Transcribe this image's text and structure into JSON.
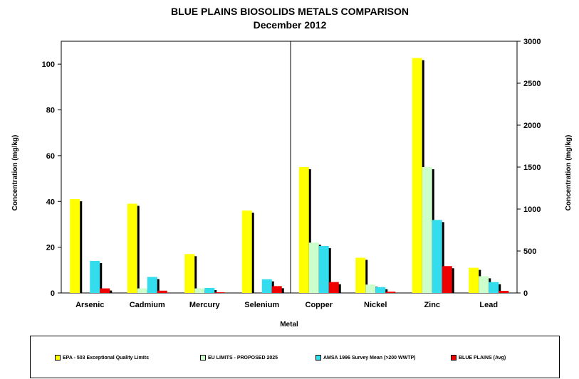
{
  "chart_data": {
    "type": "bar",
    "title": "BLUE PLAINS BIOSOLIDS METALS COMPARISON",
    "subtitle": "December 2012",
    "xlabel": "Metal",
    "ylabel_left": "Concentration (mg/kg)",
    "ylabel_right": "Concentration (mg/kg)",
    "left_axis": {
      "ylim": [
        0,
        110
      ],
      "ticks": [
        0,
        20,
        40,
        60,
        80,
        100
      ]
    },
    "right_axis": {
      "ylim": [
        0,
        3000
      ],
      "ticks": [
        0,
        500,
        1000,
        1500,
        2000,
        2500,
        3000
      ]
    },
    "left_group": {
      "axis": "left",
      "categories": [
        "Arsenic",
        "Cadmium",
        "Mercury",
        "Selenium"
      ],
      "series": [
        {
          "name": "EPA - 503 Exceptional Quality Limits",
          "color": "#FFFF00",
          "values": [
            41,
            39,
            17,
            36
          ]
        },
        {
          "name": "EU LIMITS - PROPOSED 2025",
          "color": "#CCFFCC",
          "values": [
            0,
            2,
            2,
            0
          ]
        },
        {
          "name": "AMSA 1996 Survey Mean (>200 WWTP)",
          "color": "#33DDEE",
          "values": [
            14,
            7,
            2.2,
            6
          ]
        },
        {
          "name": "BLUE PLAINS (Avg)",
          "color": "#EE0000",
          "values": [
            2,
            1,
            0.3,
            3
          ]
        }
      ]
    },
    "right_group": {
      "axis": "right",
      "categories": [
        "Copper",
        "Nickel",
        "Zinc",
        "Lead"
      ],
      "series": [
        {
          "name": "EPA - 503 Exceptional Quality Limits",
          "color": "#FFFF00",
          "values": [
            1500,
            420,
            2800,
            300
          ]
        },
        {
          "name": "EU LIMITS - PROPOSED 2025",
          "color": "#CCFFCC",
          "values": [
            600,
            100,
            1500,
            200
          ]
        },
        {
          "name": "AMSA 1996 Survey Mean (>200 WWTP)",
          "color": "#33DDEE",
          "values": [
            560,
            70,
            870,
            130
          ]
        },
        {
          "name": "BLUE PLAINS (Avg)",
          "color": "#EE0000",
          "values": [
            130,
            15,
            320,
            25
          ]
        }
      ]
    },
    "legend": {
      "position": "bottom"
    }
  }
}
